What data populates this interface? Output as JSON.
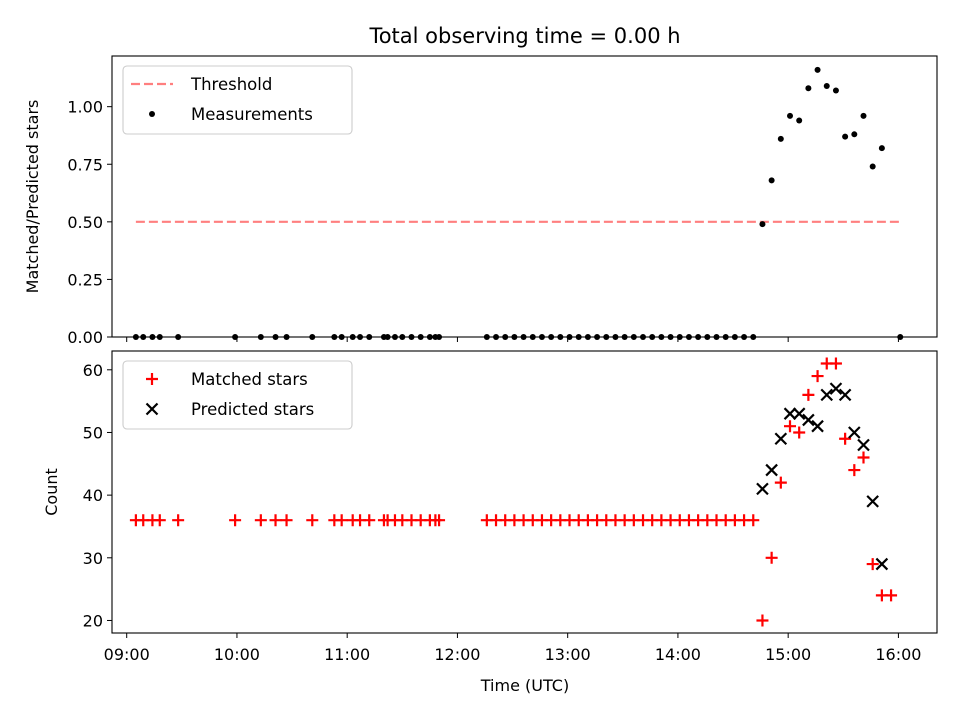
{
  "chart_data": {
    "title": "Total observing time = 0.00 h",
    "xlabel": "Time (UTC)",
    "x_ticks": [
      "09:00",
      "10:00",
      "11:00",
      "12:00",
      "13:00",
      "14:00",
      "15:00",
      "16:00"
    ],
    "xlim": [
      "08:52",
      "16:21"
    ],
    "panels": [
      {
        "type": "scatter",
        "ylabel": "Matched/Predicted stars",
        "ylim": [
          0,
          1.22
        ],
        "y_ticks": [
          "0.00",
          "0.25",
          "0.50",
          "0.75",
          "1.00"
        ],
        "legend_position": "top-left",
        "series": [
          {
            "name": "Threshold",
            "kind": "line",
            "style": "dashed",
            "color": "#ff7f7f",
            "points": [
              [
                "09:05",
                0.5
              ],
              [
                "16:01",
                0.5
              ]
            ]
          },
          {
            "name": "Measurements",
            "kind": "scatter",
            "marker": "dot",
            "color": "#000000",
            "points": [
              [
                "09:05",
                0
              ],
              [
                "09:09",
                0
              ],
              [
                "09:14",
                0
              ],
              [
                "09:18",
                0
              ],
              [
                "09:28",
                0
              ],
              [
                "09:59",
                0
              ],
              [
                "10:13",
                0
              ],
              [
                "10:21",
                0
              ],
              [
                "10:27",
                0
              ],
              [
                "10:41",
                0
              ],
              [
                "10:53",
                0
              ],
              [
                "10:57",
                0
              ],
              [
                "11:03",
                0
              ],
              [
                "11:07",
                0
              ],
              [
                "11:12",
                0
              ],
              [
                "11:20",
                0
              ],
              [
                "11:22",
                0
              ],
              [
                "11:26",
                0
              ],
              [
                "11:30",
                0
              ],
              [
                "11:35",
                0
              ],
              [
                "11:40",
                0
              ],
              [
                "11:45",
                0
              ],
              [
                "11:48",
                0
              ],
              [
                "11:50",
                0
              ],
              [
                "12:16",
                0
              ],
              [
                "12:21",
                0
              ],
              [
                "12:26",
                0
              ],
              [
                "12:31",
                0
              ],
              [
                "12:36",
                0
              ],
              [
                "12:41",
                0
              ],
              [
                "12:46",
                0
              ],
              [
                "12:51",
                0
              ],
              [
                "12:56",
                0
              ],
              [
                "13:01",
                0
              ],
              [
                "13:06",
                0
              ],
              [
                "13:11",
                0
              ],
              [
                "13:16",
                0
              ],
              [
                "13:21",
                0
              ],
              [
                "13:26",
                0
              ],
              [
                "13:31",
                0
              ],
              [
                "13:36",
                0
              ],
              [
                "13:41",
                0
              ],
              [
                "13:46",
                0
              ],
              [
                "13:51",
                0
              ],
              [
                "13:56",
                0
              ],
              [
                "14:01",
                0
              ],
              [
                "14:06",
                0
              ],
              [
                "14:11",
                0
              ],
              [
                "14:16",
                0
              ],
              [
                "14:21",
                0
              ],
              [
                "14:26",
                0
              ],
              [
                "14:31",
                0
              ],
              [
                "14:36",
                0
              ],
              [
                "14:41",
                0
              ],
              [
                "14:46",
                0.49
              ],
              [
                "14:51",
                0.68
              ],
              [
                "14:56",
                0.86
              ],
              [
                "15:01",
                0.96
              ],
              [
                "15:06",
                0.94
              ],
              [
                "15:11",
                1.08
              ],
              [
                "15:16",
                1.16
              ],
              [
                "15:21",
                1.09
              ],
              [
                "15:26",
                1.07
              ],
              [
                "15:31",
                0.87
              ],
              [
                "15:36",
                0.88
              ],
              [
                "15:41",
                0.96
              ],
              [
                "15:46",
                0.74
              ],
              [
                "15:51",
                0.82
              ],
              [
                "16:01",
                0
              ]
            ]
          }
        ]
      },
      {
        "type": "scatter",
        "ylabel": "Count",
        "ylim": [
          18,
          63
        ],
        "y_ticks": [
          "20",
          "30",
          "40",
          "50",
          "60"
        ],
        "legend_position": "top-left",
        "series": [
          {
            "name": "Matched stars",
            "kind": "scatter",
            "marker": "plus",
            "color": "#ff0000",
            "points": [
              [
                "09:05",
                36
              ],
              [
                "09:09",
                36
              ],
              [
                "09:14",
                36
              ],
              [
                "09:18",
                36
              ],
              [
                "09:28",
                36
              ],
              [
                "09:59",
                36
              ],
              [
                "10:13",
                36
              ],
              [
                "10:21",
                36
              ],
              [
                "10:27",
                36
              ],
              [
                "10:41",
                36
              ],
              [
                "10:53",
                36
              ],
              [
                "10:57",
                36
              ],
              [
                "11:03",
                36
              ],
              [
                "11:07",
                36
              ],
              [
                "11:12",
                36
              ],
              [
                "11:20",
                36
              ],
              [
                "11:22",
                36
              ],
              [
                "11:26",
                36
              ],
              [
                "11:30",
                36
              ],
              [
                "11:35",
                36
              ],
              [
                "11:40",
                36
              ],
              [
                "11:45",
                36
              ],
              [
                "11:48",
                36
              ],
              [
                "11:50",
                36
              ],
              [
                "12:16",
                36
              ],
              [
                "12:21",
                36
              ],
              [
                "12:26",
                36
              ],
              [
                "12:31",
                36
              ],
              [
                "12:36",
                36
              ],
              [
                "12:41",
                36
              ],
              [
                "12:46",
                36
              ],
              [
                "12:51",
                36
              ],
              [
                "12:56",
                36
              ],
              [
                "13:01",
                36
              ],
              [
                "13:06",
                36
              ],
              [
                "13:11",
                36
              ],
              [
                "13:16",
                36
              ],
              [
                "13:21",
                36
              ],
              [
                "13:26",
                36
              ],
              [
                "13:31",
                36
              ],
              [
                "13:36",
                36
              ],
              [
                "13:41",
                36
              ],
              [
                "13:46",
                36
              ],
              [
                "13:51",
                36
              ],
              [
                "13:56",
                36
              ],
              [
                "14:01",
                36
              ],
              [
                "14:06",
                36
              ],
              [
                "14:11",
                36
              ],
              [
                "14:16",
                36
              ],
              [
                "14:21",
                36
              ],
              [
                "14:26",
                36
              ],
              [
                "14:31",
                36
              ],
              [
                "14:36",
                36
              ],
              [
                "14:41",
                36
              ],
              [
                "14:46",
                20
              ],
              [
                "14:51",
                30
              ],
              [
                "14:56",
                42
              ],
              [
                "15:01",
                51
              ],
              [
                "15:06",
                50
              ],
              [
                "15:11",
                56
              ],
              [
                "15:16",
                59
              ],
              [
                "15:21",
                61
              ],
              [
                "15:26",
                61
              ],
              [
                "15:31",
                49
              ],
              [
                "15:36",
                44
              ],
              [
                "15:41",
                46
              ],
              [
                "15:46",
                29
              ],
              [
                "15:51",
                24
              ],
              [
                "15:56",
                24
              ]
            ]
          },
          {
            "name": "Predicted stars",
            "kind": "scatter",
            "marker": "x",
            "color": "#000000",
            "points": [
              [
                "14:46",
                41
              ],
              [
                "14:51",
                44
              ],
              [
                "14:56",
                49
              ],
              [
                "15:01",
                53
              ],
              [
                "15:06",
                53
              ],
              [
                "15:11",
                52
              ],
              [
                "15:16",
                51
              ],
              [
                "15:21",
                56
              ],
              [
                "15:26",
                57
              ],
              [
                "15:31",
                56
              ],
              [
                "15:36",
                50
              ],
              [
                "15:41",
                48
              ],
              [
                "15:46",
                39
              ],
              [
                "15:51",
                29
              ]
            ]
          }
        ]
      }
    ]
  }
}
